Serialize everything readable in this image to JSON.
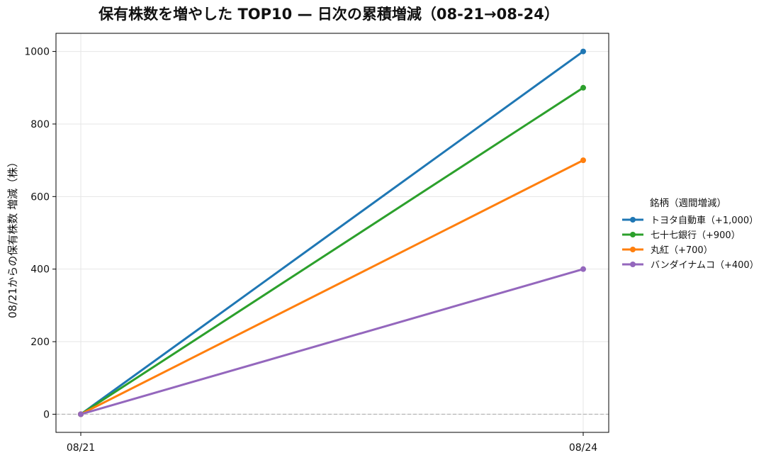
{
  "chart_data": {
    "type": "line",
    "title": "保有株数を増やした TOP10 — 日次の累積増減（08-21→08-24）",
    "xlabel": "",
    "ylabel": "08/21からの保有株数 増減（株）",
    "categories": [
      "08/21",
      "08/24"
    ],
    "ylim": [
      -50,
      1050
    ],
    "yticks": [
      0,
      200,
      400,
      600,
      800,
      1000
    ],
    "grid": true,
    "zero_line": "dashed",
    "legend": {
      "title": "銘柄（週間増減）",
      "placement": "right"
    },
    "series": [
      {
        "name": "トヨタ自動車（+1,000）",
        "color": "#1f77b4",
        "values": [
          0,
          1000
        ]
      },
      {
        "name": "七十七銀行（+900）",
        "color": "#2ca02c",
        "values": [
          0,
          900
        ]
      },
      {
        "name": "丸紅（+700）",
        "color": "#ff7f0e",
        "values": [
          0,
          700
        ]
      },
      {
        "name": "バンダイナムコ（+400）",
        "color": "#9467bd",
        "values": [
          0,
          400
        ]
      }
    ]
  }
}
